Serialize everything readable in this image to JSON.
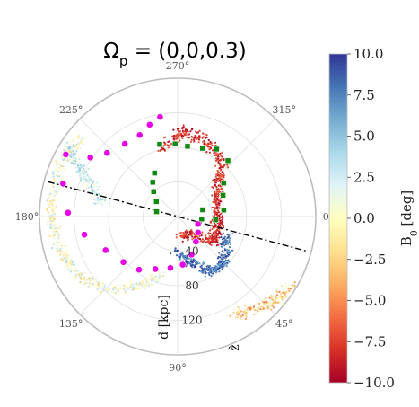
{
  "chart_data": {
    "type": "scatter",
    "title": "Ω_p = (0,0,0.3)",
    "title_main": "Ω",
    "title_sub": "p",
    "title_rest": " = (0,0,0.3)",
    "projection": "polar",
    "theta_direction": "clockwise",
    "theta_ticks": [
      "0°",
      "45°",
      "90°",
      "135°",
      "180°",
      "225°",
      "270°",
      "315°"
    ],
    "theta_tick_degrees": [
      0,
      45,
      90,
      135,
      180,
      225,
      270,
      315
    ],
    "r_ticks": [
      "40",
      "80",
      "120"
    ],
    "r_tick_values": [
      40,
      80,
      120
    ],
    "rlim": [
      0,
      160
    ],
    "radial_axis_label": "d [kpc]",
    "radial_axis_angle_deg": 90,
    "z_label": "ẑ",
    "grid": true,
    "colorbar": {
      "label": "B₀ [deg]",
      "label_main": "B",
      "label_sub": "0",
      "label_rest": " [deg]",
      "range": [
        -10.0,
        10.0
      ],
      "ticks": [
        "10.0",
        "7.5",
        "5.0",
        "2.5",
        "0.0",
        "−2.5",
        "−5.0",
        "−7.5",
        "−10.0"
      ],
      "tick_values": [
        10.0,
        7.5,
        5.0,
        2.5,
        0.0,
        -2.5,
        -5.0,
        -7.5,
        -10.0
      ],
      "colormap": "RdYlBu",
      "stops": [
        "#a50026",
        "#d73027",
        "#f46d43",
        "#fdae61",
        "#fee090",
        "#ffffbf",
        "#e0f3f8",
        "#abd9e9",
        "#74add1",
        "#4575b4",
        "#313695"
      ]
    },
    "dashdot_line": {
      "points": [
        {
          "theta": 195,
          "r": 155
        },
        {
          "theta": 15,
          "r": 155
        }
      ],
      "color": "#000000"
    },
    "series": [
      {
        "marker": "circle",
        "color": "#e600e6",
        "size": "large",
        "points": [
          {
            "theta": 209,
            "r": 148
          },
          {
            "theta": 214,
            "r": 122
          },
          {
            "theta": 222,
            "r": 110
          },
          {
            "theta": 234,
            "r": 104
          },
          {
            "theta": 245,
            "r": 104
          },
          {
            "theta": 253,
            "r": 111
          },
          {
            "theta": 260,
            "r": 117
          },
          {
            "theta": 196,
            "r": 138
          },
          {
            "theta": 182,
            "r": 127
          },
          {
            "theta": 169,
            "r": 110
          },
          {
            "theta": 155,
            "r": 92
          },
          {
            "theta": 140,
            "r": 82
          },
          {
            "theta": 126,
            "r": 76
          },
          {
            "theta": 113,
            "r": 66
          },
          {
            "theta": 98,
            "r": 60
          },
          {
            "theta": 84,
            "r": 56
          },
          {
            "theta": 70,
            "r": 47
          },
          {
            "theta": 54,
            "r": 36
          },
          {
            "theta": 38,
            "r": 30
          },
          {
            "theta": 20,
            "r": 25
          }
        ]
      },
      {
        "marker": "square",
        "color": "#118811",
        "size": "medium",
        "points": [
          {
            "theta": 242,
            "r": 57
          },
          {
            "theta": 234,
            "r": 49
          },
          {
            "theta": 226,
            "r": 40
          },
          {
            "theta": 215,
            "r": 30
          },
          {
            "theta": 193,
            "r": 25
          },
          {
            "theta": 300,
            "r": 90
          },
          {
            "theta": 290,
            "r": 84
          },
          {
            "theta": 278,
            "r": 82
          },
          {
            "theta": 268,
            "r": 84
          },
          {
            "theta": 256,
            "r": 86
          },
          {
            "theta": 312,
            "r": 87
          },
          {
            "theta": 324,
            "r": 66
          },
          {
            "theta": 335,
            "r": 58
          },
          {
            "theta": 352,
            "r": 54
          },
          {
            "theta": 5,
            "r": 44
          },
          {
            "theta": 6,
            "r": 28
          },
          {
            "theta": 345,
            "r": 30
          }
        ]
      }
    ],
    "point_clouds": [
      {
        "name": "",
        "b0_range": [
          -10.0,
          -6.0
        ],
        "path": [
          [
            258,
            80
          ],
          [
            272,
            98
          ],
          [
            290,
            96
          ],
          [
            308,
            82
          ],
          [
            320,
            62
          ],
          [
            335,
            50
          ],
          [
            2,
            47
          ],
          [
            20,
            48
          ],
          [
            35,
            50
          ],
          [
            52,
            30
          ],
          [
            80,
            20
          ]
        ]
      },
      {
        "name": "",
        "b0_range": [
          6.0,
          10.0
        ],
        "path": [
          [
            20,
            60
          ],
          [
            38,
            72
          ],
          [
            50,
            76
          ],
          [
            62,
            72
          ],
          [
            75,
            55
          ],
          [
            90,
            42
          ]
        ]
      },
      {
        "name": "",
        "b0_range": [
          0.0,
          5.0
        ],
        "path": [
          [
            190,
            90
          ],
          [
            200,
            108
          ],
          [
            206,
            125
          ],
          [
            210,
            140
          ],
          [
            212,
            150
          ]
        ]
      },
      {
        "name": "",
        "b0_range": [
          -3.0,
          4.0
        ],
        "path": [
          [
            220,
            145
          ],
          [
            200,
            150
          ],
          [
            180,
            148
          ],
          [
            165,
            142
          ],
          [
            150,
            135
          ],
          [
            135,
            118
          ],
          [
            120,
            95
          ],
          [
            105,
            72
          ]
        ]
      },
      {
        "name": "",
        "b0_range": [
          -6.0,
          2.0
        ],
        "path": [
          [
            60,
            130
          ],
          [
            50,
            140
          ],
          [
            40,
            150
          ],
          [
            30,
            155
          ]
        ]
      }
    ]
  }
}
